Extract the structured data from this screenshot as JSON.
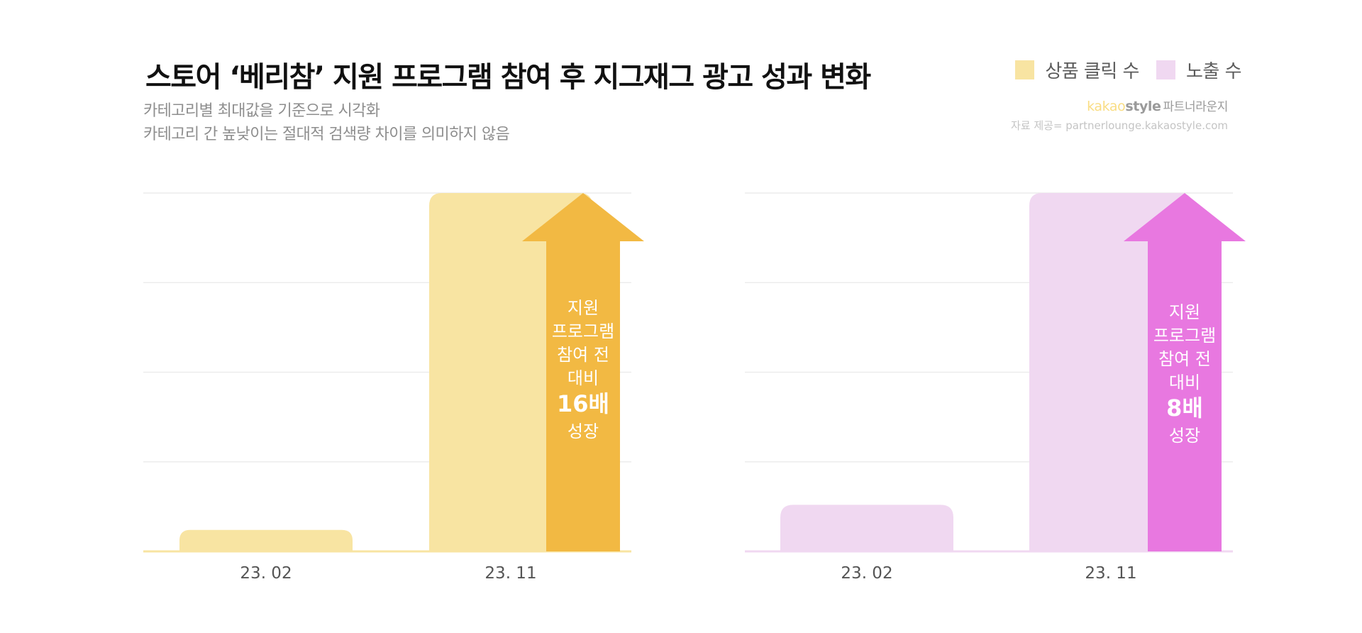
{
  "header": {
    "title": "스토어 ‘베리참’ 지원 프로그램 참여 후 지그재그 광고 성과 변화",
    "subtitle_lines": [
      "카테고리별 최대값을 기준으로 시각화",
      "카테고리 간 높낮이는 절대적 검색량 차이를 의미하지 않음"
    ]
  },
  "legend": [
    {
      "label": "상품 클릭 수",
      "color": "#f8e4a2"
    },
    {
      "label": "노출 수",
      "color": "#f0d8f1"
    }
  ],
  "brand": {
    "kakao": "kakao",
    "style": "style",
    "lounge": "파트너라운지",
    "source": "자료 제공= partnerlounge.kakaostyle.com"
  },
  "chart_data": [
    {
      "type": "bar",
      "categories": [
        "23. 02",
        "23. 11"
      ],
      "series": [
        {
          "name": "상품 클릭 수",
          "values": [
            6,
            100
          ]
        }
      ],
      "ylim": [
        0,
        100
      ],
      "grid": true,
      "bar_color": "#f8e4a2",
      "annotation": {
        "lines": [
          "지원",
          "프로그램",
          "참여 전",
          "대비"
        ],
        "highlight": "16배",
        "tail": "성장",
        "color": "#f2b943"
      }
    },
    {
      "type": "bar",
      "categories": [
        "23. 02",
        "23. 11"
      ],
      "series": [
        {
          "name": "노출 수",
          "values": [
            13,
            100
          ]
        }
      ],
      "ylim": [
        0,
        100
      ],
      "grid": true,
      "bar_color": "#f0d8f1",
      "annotation": {
        "lines": [
          "지원",
          "프로그램",
          "참여 전",
          "대비"
        ],
        "highlight": "8배",
        "tail": "성장",
        "color": "#e878e0"
      }
    }
  ]
}
